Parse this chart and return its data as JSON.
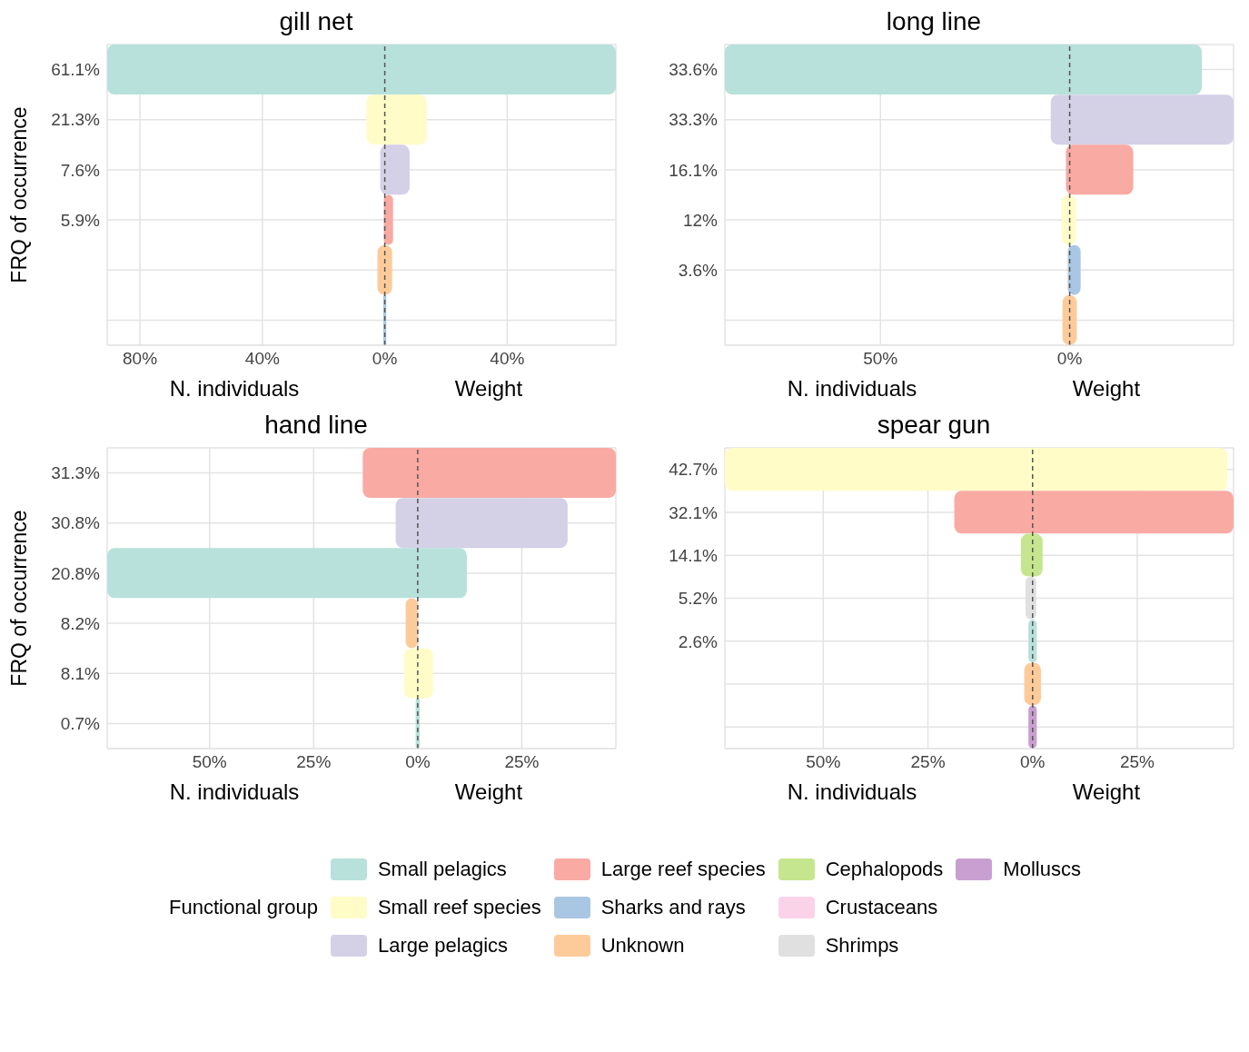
{
  "chart_data": [
    {
      "type": "bar",
      "orientation": "horizontal",
      "title": "gill net",
      "xlabel": "N. individuals",
      "annotations": [
        "Weight"
      ],
      "ylabel": "FRQ of occurrence",
      "legend": "bottom",
      "legend_title": "Functional group",
      "grid": true,
      "categories": [
        "61.1%",
        "21.3%",
        "7.6%",
        "5.9%",
        null,
        null
      ],
      "xlim": [
        -90.7,
        75.5
      ],
      "xticks": [
        {
          "value": -80,
          "label": "80%"
        },
        {
          "value": -40,
          "label": "40%"
        },
        {
          "value": 0,
          "label": "0%"
        },
        {
          "value": 40,
          "label": "40%"
        }
      ],
      "ref_lines": [
        {
          "axis": "x",
          "value": 0,
          "color": "#555555",
          "line_style": "dashed"
        }
      ],
      "series": [
        {
          "name": "Small pelagics",
          "color": "#b7e1da",
          "base": [
            -90.7,
            null,
            null,
            null,
            null,
            null
          ],
          "values": [
            166.2,
            null,
            null,
            null,
            null,
            null
          ]
        },
        {
          "name": "Small reef species",
          "color": "#fffcc8",
          "base": [
            null,
            -6,
            null,
            null,
            null,
            null
          ],
          "values": [
            null,
            19.7,
            null,
            null,
            null,
            null
          ]
        },
        {
          "name": "Large pelagics",
          "color": "#d4d0e6",
          "base": [
            null,
            null,
            -1.5,
            null,
            null,
            null
          ],
          "values": [
            null,
            null,
            9.6,
            null,
            null,
            null
          ]
        },
        {
          "name": "Large reef species",
          "color": "#f8aaa3",
          "base": [
            null,
            null,
            null,
            -0.3,
            null,
            null
          ],
          "values": [
            null,
            null,
            null,
            3.0,
            null,
            null
          ]
        },
        {
          "name": "Sharks and rays",
          "color": "#a9c7e2",
          "base": [
            null,
            null,
            null,
            null,
            null,
            -0.5
          ],
          "values": [
            null,
            null,
            null,
            null,
            null,
            1.0
          ]
        },
        {
          "name": "Unknown",
          "color": "#fdcb9a",
          "base": [
            null,
            null,
            null,
            null,
            -2.4,
            null
          ],
          "values": [
            null,
            null,
            null,
            null,
            4.8,
            null
          ]
        },
        {
          "name": "Cephalopods",
          "color": "#c5e68e",
          "values": [
            null,
            null,
            null,
            null,
            null,
            null
          ]
        },
        {
          "name": "Crustaceans",
          "color": "#fbd3e9",
          "values": [
            null,
            null,
            null,
            null,
            null,
            null
          ]
        },
        {
          "name": "Shrimps",
          "color": "#e0e0e0",
          "values": [
            null,
            null,
            null,
            null,
            null,
            null
          ]
        },
        {
          "name": "Molluscs",
          "color": "#c89fd0",
          "values": [
            null,
            null,
            null,
            null,
            null,
            null
          ]
        }
      ]
    },
    {
      "type": "bar",
      "orientation": "horizontal",
      "title": "long line",
      "xlabel": "N. individuals",
      "annotations": [
        "Weight"
      ],
      "grid": true,
      "categories": [
        "33.6%",
        "33.3%",
        "16.1%",
        "12%",
        "3.6%",
        null
      ],
      "xlim": [
        -91.1,
        43.3
      ],
      "xticks": [
        {
          "value": -50,
          "label": "50%"
        },
        {
          "value": 0,
          "label": "0%"
        }
      ],
      "ref_lines": [
        {
          "axis": "x",
          "value": 0,
          "color": "#555555",
          "line_style": "dashed"
        }
      ],
      "series": [
        {
          "color": "#b7e1da",
          "base": [
            -91.1,
            null,
            null,
            null,
            null,
            null
          ],
          "values": [
            126,
            null,
            null,
            null,
            null,
            null
          ]
        },
        {
          "color": "#d4d0e6",
          "base": [
            null,
            -5,
            null,
            null,
            null,
            null
          ],
          "values": [
            null,
            48.3,
            null,
            null,
            null,
            null
          ]
        },
        {
          "color": "#f8aaa3",
          "base": [
            null,
            null,
            -1,
            null,
            null,
            null
          ],
          "values": [
            null,
            null,
            17.8,
            null,
            null,
            null
          ]
        },
        {
          "color": "#fffcc8",
          "base": [
            null,
            null,
            null,
            -2.2,
            null,
            null
          ],
          "values": [
            null,
            null,
            null,
            3.9,
            null,
            null
          ]
        },
        {
          "color": "#a9c7e2",
          "base": [
            null,
            null,
            null,
            null,
            -0.5,
            null
          ],
          "values": [
            null,
            null,
            null,
            null,
            3.4,
            null
          ]
        },
        {
          "color": "#fdcb9a",
          "base": [
            null,
            null,
            null,
            null,
            null,
            -1.9
          ],
          "values": [
            null,
            null,
            null,
            null,
            null,
            3.8
          ]
        }
      ]
    },
    {
      "type": "bar",
      "orientation": "horizontal",
      "title": "hand line",
      "xlabel": "N. individuals",
      "annotations": [
        "Weight"
      ],
      "ylabel": "FRQ of occurrence",
      "grid": true,
      "categories": [
        "31.3%",
        "30.8%",
        "20.8%",
        "8.2%",
        "8.1%",
        "0.7%"
      ],
      "xlim": [
        -74.6,
        47.6
      ],
      "xticks": [
        {
          "value": -50,
          "label": "50%"
        },
        {
          "value": -25,
          "label": "25%"
        },
        {
          "value": 0,
          "label": "0%"
        },
        {
          "value": 25,
          "label": "25%"
        }
      ],
      "ref_lines": [
        {
          "axis": "x",
          "value": 0,
          "color": "#555555",
          "line_style": "dashed"
        }
      ],
      "series": [
        {
          "color": "#f8aaa3",
          "base": [
            -13.2,
            null,
            null,
            null,
            null,
            null
          ],
          "values": [
            60.8,
            null,
            null,
            null,
            null,
            null
          ]
        },
        {
          "color": "#d4d0e6",
          "base": [
            null,
            -5.3,
            null,
            null,
            null,
            null
          ],
          "values": [
            null,
            41.3,
            null,
            null,
            null,
            null
          ]
        },
        {
          "color": "#b7e1da",
          "base": [
            null,
            null,
            -74.6,
            null,
            null,
            -0.5
          ],
          "values": [
            null,
            null,
            86.4,
            null,
            null,
            1.0
          ]
        },
        {
          "color": "#fdcb9a",
          "base": [
            null,
            null,
            null,
            -2.9,
            null,
            null
          ],
          "values": [
            null,
            null,
            null,
            2.9,
            null,
            null
          ]
        },
        {
          "color": "#fffcc8",
          "base": [
            null,
            null,
            null,
            null,
            -3.3,
            null
          ],
          "values": [
            null,
            null,
            null,
            null,
            7.0,
            null
          ]
        }
      ]
    },
    {
      "type": "bar",
      "orientation": "horizontal",
      "title": "spear gun",
      "xlabel": "N. individuals",
      "annotations": [
        "Weight"
      ],
      "grid": true,
      "categories": [
        "42.7%",
        "32.1%",
        "14.1%",
        "5.2%",
        "2.6%",
        null,
        null
      ],
      "xlim": [
        -73.5,
        48
      ],
      "xticks": [
        {
          "value": -50,
          "label": "50%"
        },
        {
          "value": -25,
          "label": "25%"
        },
        {
          "value": 0,
          "label": "0%"
        },
        {
          "value": 25,
          "label": "25%"
        }
      ],
      "ref_lines": [
        {
          "axis": "x",
          "value": 0,
          "color": "#555555",
          "line_style": "dashed"
        }
      ],
      "series": [
        {
          "color": "#fffcc8",
          "base": [
            -73.5,
            null,
            null,
            null,
            null,
            null,
            null
          ],
          "values": [
            120,
            null,
            null,
            null,
            null,
            null,
            null
          ]
        },
        {
          "color": "#f8aaa3",
          "base": [
            null,
            -18.7,
            null,
            null,
            null,
            null,
            null
          ],
          "values": [
            null,
            66.7,
            null,
            null,
            null,
            null,
            null
          ]
        },
        {
          "color": "#c5e68e",
          "base": [
            null,
            null,
            -2.8,
            null,
            null,
            null,
            null
          ],
          "values": [
            null,
            null,
            5.2,
            null,
            null,
            null,
            null
          ]
        },
        {
          "color": "#e0e0e0",
          "base": [
            null,
            null,
            null,
            -1.7,
            null,
            null,
            null
          ],
          "values": [
            null,
            null,
            null,
            2.6,
            null,
            null,
            null
          ]
        },
        {
          "color": "#b7e1da",
          "base": [
            null,
            null,
            null,
            null,
            -1,
            null,
            null
          ],
          "values": [
            null,
            null,
            null,
            null,
            2.0,
            null,
            null
          ]
        },
        {
          "color": "#fdcb9a",
          "base": [
            null,
            null,
            null,
            null,
            null,
            -2,
            null
          ],
          "values": [
            null,
            null,
            null,
            null,
            null,
            4.0,
            null
          ]
        },
        {
          "color": "#c89fd0",
          "base": [
            null,
            null,
            null,
            null,
            null,
            null,
            -1
          ],
          "values": [
            null,
            null,
            null,
            null,
            null,
            null,
            2.0
          ]
        }
      ]
    }
  ]
}
